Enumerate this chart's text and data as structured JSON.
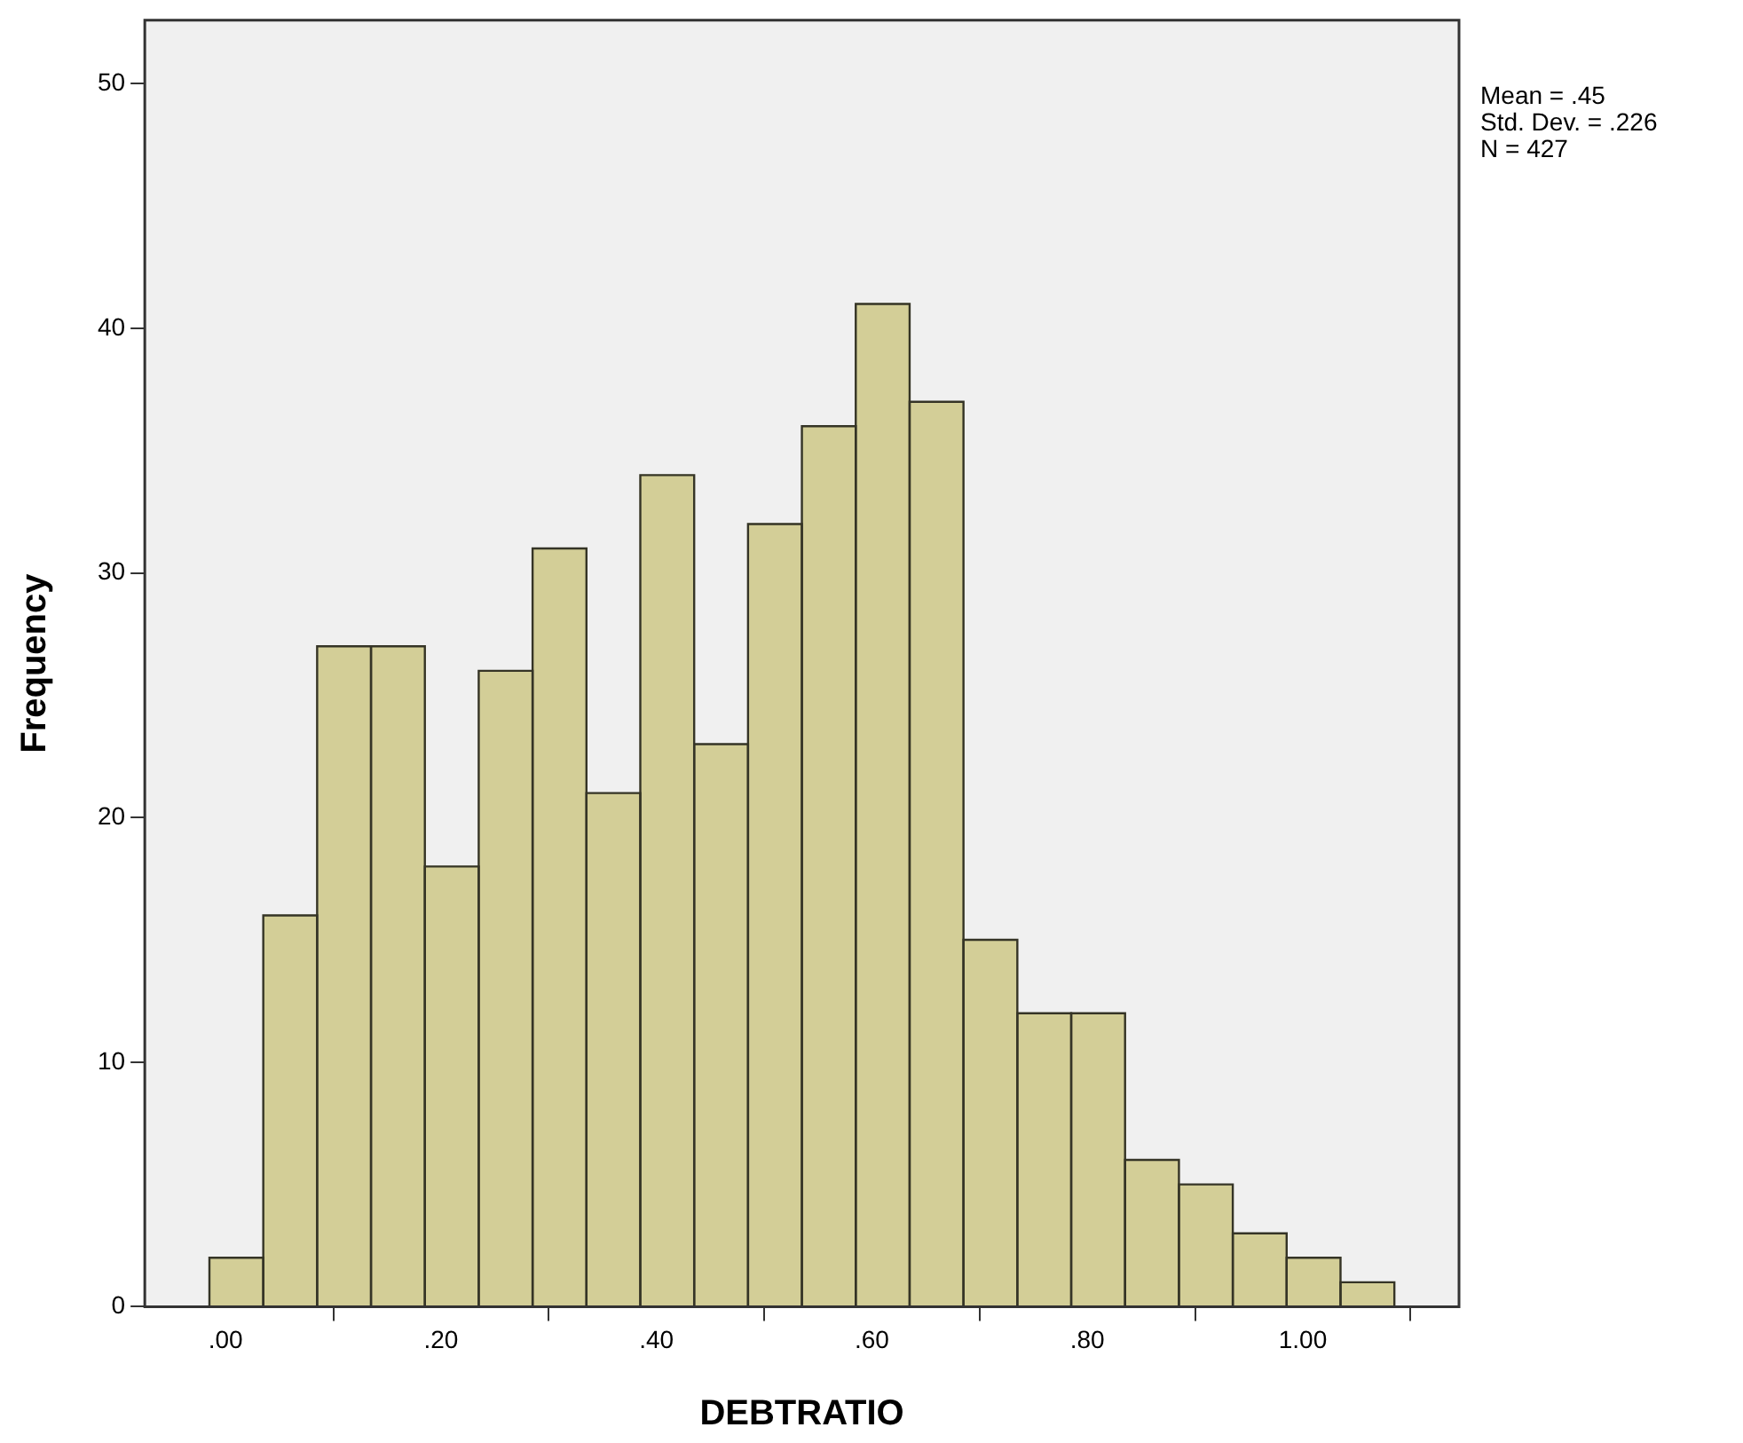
{
  "chart_data": {
    "type": "histogram",
    "xlabel": "DEBTRATIO",
    "ylabel": "Frequency",
    "bins": [
      -0.015,
      0.035,
      0.085,
      0.135,
      0.185,
      0.235,
      0.285,
      0.335,
      0.385,
      0.435,
      0.485,
      0.535,
      0.585,
      0.635,
      0.685,
      0.735,
      0.785,
      0.835,
      0.885,
      0.935,
      0.985,
      1.035,
      1.085
    ],
    "values": [
      2,
      16,
      27,
      27,
      18,
      26,
      31,
      21,
      34,
      23,
      32,
      36,
      41,
      37,
      15,
      12,
      12,
      6,
      5,
      3,
      2,
      1
    ],
    "color": "#d3ce97",
    "xlim": [
      -0.075,
      1.145
    ],
    "xticks": [
      {
        "value": 0,
        "label": ".00"
      },
      {
        "value": 0.2,
        "label": ".20"
      },
      {
        "value": 0.4,
        "label": ".40"
      },
      {
        "value": 0.6,
        "label": ".60"
      },
      {
        "value": 0.8,
        "label": ".80"
      },
      {
        "value": 1,
        "label": "1.00"
      }
    ],
    "ylim": [
      0,
      52.6
    ],
    "yticks": [
      0,
      10,
      20,
      30,
      40,
      50
    ],
    "grid": false,
    "legend": false,
    "annotations": [
      "Mean = .45",
      "Std. Dev. = .226",
      "N = 427"
    ]
  }
}
